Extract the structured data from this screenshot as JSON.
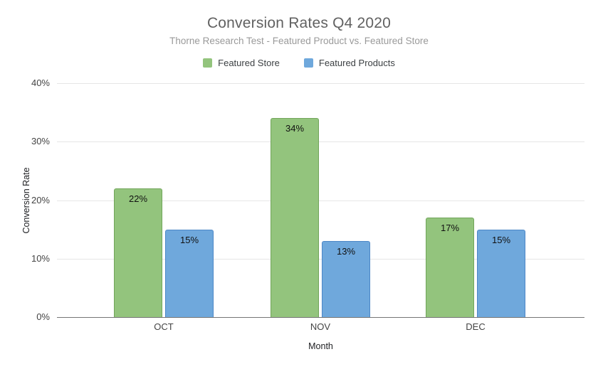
{
  "chart_data": {
    "type": "bar",
    "title": "Conversion Rates Q4 2020",
    "subtitle": "Thorne Research Test - Featured Product vs. Featured Store",
    "xlabel": "Month",
    "ylabel": "Conversion Rate",
    "categories": [
      "OCT",
      "NOV",
      "DEC"
    ],
    "series": [
      {
        "name": "Featured Store",
        "values": [
          22,
          34,
          17
        ],
        "value_labels": [
          "22%",
          "34%",
          "17%"
        ],
        "color": "#93c47d",
        "border_color": "#71a55a"
      },
      {
        "name": "Featured Products",
        "values": [
          15,
          13,
          15
        ],
        "value_labels": [
          "15%",
          "13%",
          "15%"
        ],
        "color": "#6fa8dc",
        "border_color": "#4d87c7"
      }
    ],
    "ylim": [
      0,
      40
    ],
    "yticks": [
      0,
      10,
      20,
      30,
      40
    ],
    "ytick_labels": [
      "0%",
      "10%",
      "20%",
      "30%",
      "40%"
    ],
    "grid": true,
    "legend_position": "top",
    "background_color": "#ffffff",
    "gridline_color": "#e6e6e6",
    "baseline_color": "#757575"
  }
}
